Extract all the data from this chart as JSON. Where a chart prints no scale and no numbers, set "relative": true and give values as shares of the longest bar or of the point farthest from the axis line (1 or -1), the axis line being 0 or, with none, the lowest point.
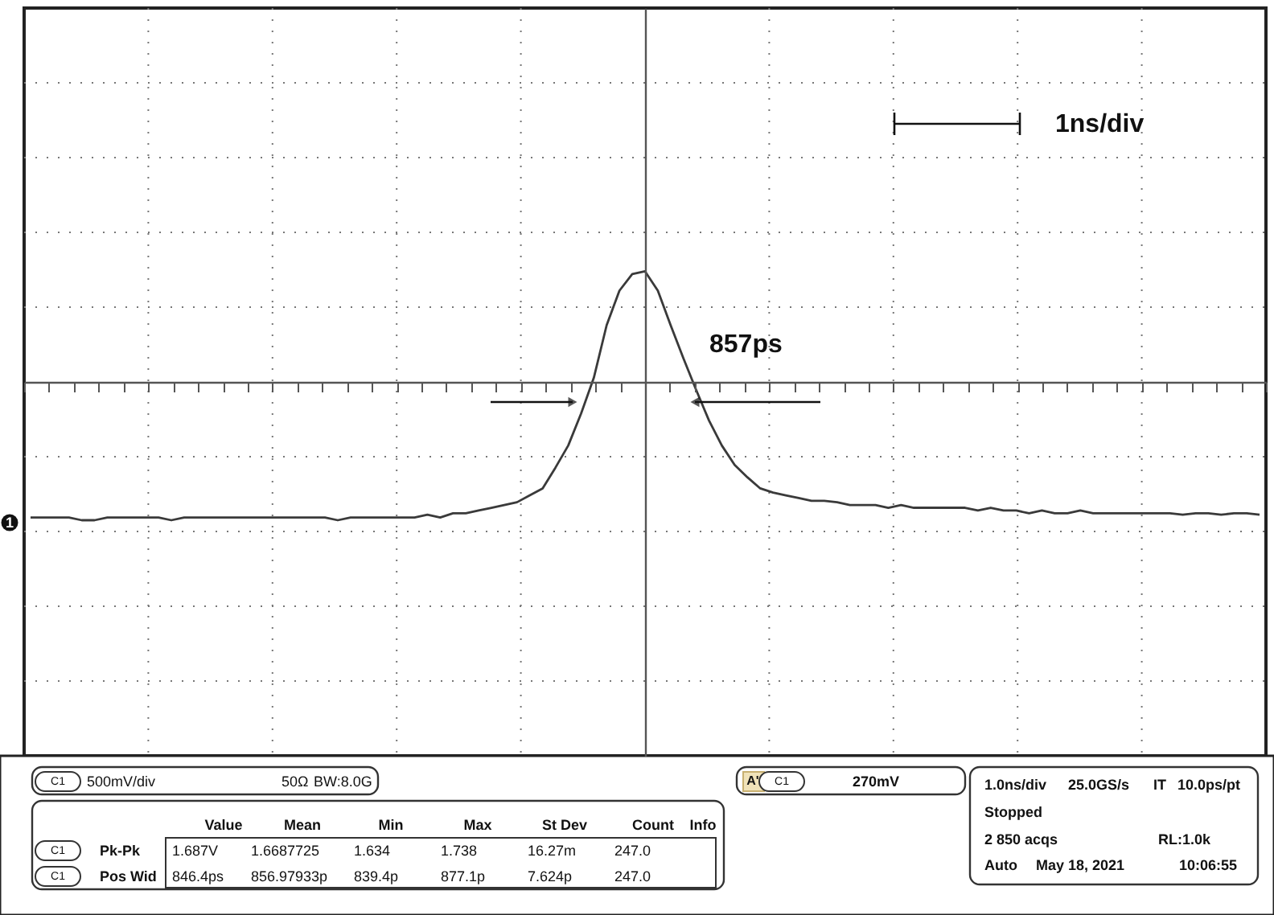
{
  "chart_data": {
    "type": "line",
    "relative": true,
    "grid": true,
    "line_style": "solid",
    "categories": [
      null,
      null,
      null,
      null,
      null,
      null,
      null,
      null,
      null,
      null,
      null,
      null,
      null,
      null,
      null,
      null,
      null,
      null,
      null,
      null,
      null,
      null,
      null,
      null,
      null,
      null,
      null,
      null,
      null,
      null,
      null,
      null,
      null,
      null,
      null,
      null,
      null,
      null,
      null,
      null,
      null,
      null,
      null,
      null,
      null,
      null,
      null,
      null,
      null,
      null,
      null,
      null,
      null,
      null,
      null,
      null,
      null,
      null,
      null,
      null,
      null,
      null,
      null,
      null,
      null,
      null,
      null,
      null,
      null,
      null,
      null,
      null,
      null,
      null,
      null,
      null,
      null,
      null,
      null,
      null,
      null,
      null,
      null,
      null,
      null,
      null,
      null,
      null,
      null,
      null,
      null,
      null,
      null,
      null,
      null,
      null,
      null
    ],
    "series": [
      {
        "color": "#3a3a3a",
        "values": [
          -0.98,
          -0.98,
          -0.98,
          -0.98,
          -1,
          -1,
          -0.98,
          -0.98,
          -0.98,
          -0.98,
          -0.98,
          -1,
          -0.98,
          -0.98,
          -0.98,
          -0.98,
          -0.98,
          -0.98,
          -0.98,
          -0.98,
          -0.98,
          -0.98,
          -0.98,
          -0.98,
          -1,
          -0.98,
          -0.98,
          -0.98,
          -0.98,
          -0.98,
          -0.98,
          -0.96,
          -0.98,
          -0.95,
          -0.95,
          -0.93,
          -0.91,
          -0.89,
          -0.87,
          -0.82,
          -0.77,
          -0.62,
          -0.46,
          -0.23,
          0.03,
          0.41,
          0.66,
          0.78,
          0.8,
          0.66,
          0.41,
          0.17,
          -0.06,
          -0.28,
          -0.46,
          -0.6,
          -0.69,
          -0.77,
          -0.8,
          -0.82,
          -0.84,
          -0.86,
          -0.86,
          -0.87,
          -0.89,
          -0.89,
          -0.89,
          -0.91,
          -0.89,
          -0.91,
          -0.91,
          -0.91,
          -0.91,
          -0.91,
          -0.93,
          -0.91,
          -0.93,
          -0.93,
          -0.95,
          -0.93,
          -0.95,
          -0.95,
          -0.93,
          -0.95,
          -0.95,
          -0.95,
          -0.95,
          -0.95,
          -0.95,
          -0.95,
          -0.96,
          -0.95,
          -0.95,
          -0.96,
          -0.95,
          -0.95,
          -0.96
        ]
      }
    ],
    "annotations": [
      "1ns/div",
      "857ps",
      "C1",
      "500mV/div",
      "50Ω",
      "BW:8.0G",
      "Value",
      "Mean",
      "Min",
      "Max",
      "St Dev",
      "Count",
      "Info",
      "C1",
      "Pk-Pk",
      "1.687V",
      "1.6687725",
      "1.634",
      "1.738",
      "16.27m",
      "247.0",
      "C1",
      "Pos Wid",
      "846.4ps",
      "856.97933p",
      "839.4p",
      "877.1p",
      "7.624p",
      "247.0",
      "A'",
      "C1",
      "270mV",
      "1.0ns/div",
      "25.0GS/s",
      "IT",
      "10.0ps/pt",
      "Stopped",
      "2 850 acqs",
      "RL:1.0k",
      "Auto",
      "May 18, 2021",
      "10:06:55",
      "1"
    ]
  }
}
